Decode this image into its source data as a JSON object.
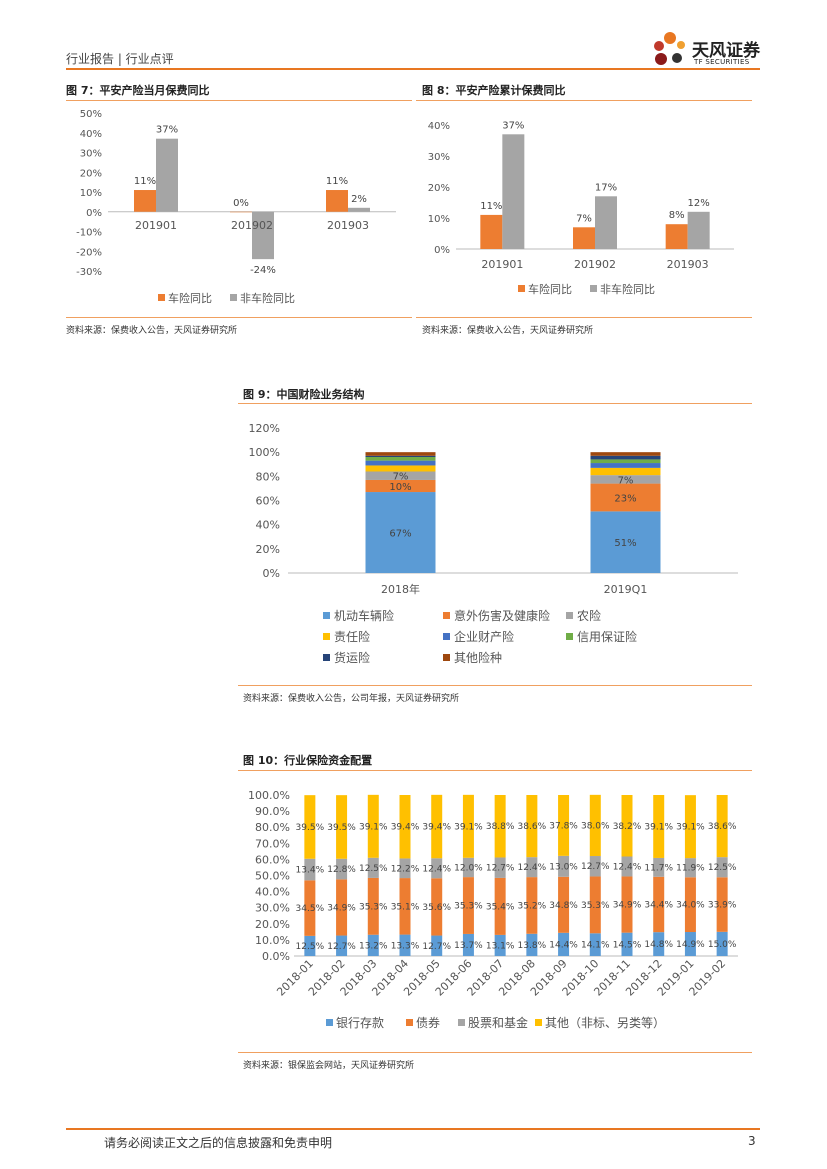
{
  "header": {
    "left": "行业报告 | 行业点评",
    "logo_cn": "天风证券",
    "logo_en": "TF SECURITIES"
  },
  "colors": {
    "orange": "#ed7d31",
    "gray": "#a5a5a5",
    "blue": "#5b9bd5",
    "yellow": "#ffc000",
    "darkblue": "#4472c4",
    "green": "#70ad47",
    "navy": "#264478",
    "brown": "#9e480e",
    "accent": "#e87722"
  },
  "fig7": {
    "title": "图 7：平安产险当月保费同比",
    "source": "资料来源：保费收入公告，天风证券研究所"
  },
  "fig8": {
    "title": "图 8：平安产险累计保费同比",
    "source": "资料来源：保费收入公告，天风证券研究所"
  },
  "fig9": {
    "title": "图 9：中国财险业务结构",
    "source": "资料来源：保费收入公告，公司年报，天风证券研究所"
  },
  "fig10": {
    "title": "图 10：行业保险资金配置",
    "source": "资料来源：银保监会网站，天风证券研究所"
  },
  "footer": {
    "disclaimer": "请务必阅读正文之后的信息披露和免责申明",
    "page": "3"
  },
  "chart_data": [
    {
      "type": "bar",
      "categories": [
        "201901",
        "201902",
        "201903"
      ],
      "series": [
        {
          "name": "车险同比",
          "values": [
            11,
            0,
            11
          ],
          "labels": [
            "11%",
            "0%",
            "11%"
          ]
        },
        {
          "name": "非车险同比",
          "values": [
            37,
            -24,
            2
          ],
          "labels": [
            "37%",
            "-24%",
            "2%"
          ]
        }
      ],
      "ylim": [
        -30,
        50
      ],
      "yticks": [
        "50%",
        "40%",
        "30%",
        "20%",
        "10%",
        "0%",
        "-10%",
        "-20%",
        "-30%"
      ],
      "legend": "bottom"
    },
    {
      "type": "bar",
      "categories": [
        "201901",
        "201902",
        "201903"
      ],
      "series": [
        {
          "name": "车险同比",
          "values": [
            11,
            7,
            8
          ],
          "labels": [
            "11%",
            "7%",
            "8%"
          ]
        },
        {
          "name": "非车险同比",
          "values": [
            37,
            17,
            12
          ],
          "labels": [
            "37%",
            "17%",
            "12%"
          ]
        }
      ],
      "ylim": [
        0,
        40
      ],
      "yticks": [
        "40%",
        "30%",
        "20%",
        "10%",
        "0%"
      ],
      "legend": "bottom"
    },
    {
      "type": "bar",
      "stacked": true,
      "categories": [
        "2018年",
        "2019Q1"
      ],
      "series": [
        {
          "name": "机动车辆险",
          "values": [
            67,
            51
          ],
          "labels": [
            "67%",
            "51%"
          ]
        },
        {
          "name": "意外伤害及健康险",
          "values": [
            10,
            23
          ],
          "labels": [
            "10%",
            "23%"
          ]
        },
        {
          "name": "农险",
          "values": [
            7,
            7
          ],
          "labels": [
            "7%",
            "7%"
          ]
        },
        {
          "name": "责任险",
          "values": [
            5,
            6
          ],
          "labels": [
            "",
            ""
          ]
        },
        {
          "name": "企业财产险",
          "values": [
            4,
            4
          ],
          "labels": [
            "",
            ""
          ]
        },
        {
          "name": "信用保证险",
          "values": [
            3,
            3
          ],
          "labels": [
            "",
            ""
          ]
        },
        {
          "name": "货运险",
          "values": [
            1,
            3
          ],
          "labels": [
            "",
            ""
          ]
        },
        {
          "name": "其他险种",
          "values": [
            3,
            3
          ],
          "labels": [
            "",
            ""
          ]
        }
      ],
      "ylim": [
        0,
        120
      ],
      "yticks": [
        "120%",
        "100%",
        "80%",
        "60%",
        "40%",
        "20%",
        "0%"
      ],
      "legend": "bottom"
    },
    {
      "type": "bar",
      "stacked": true,
      "categories": [
        "2018-01",
        "2018-02",
        "2018-03",
        "2018-04",
        "2018-05",
        "2018-06",
        "2018-07",
        "2018-08",
        "2018-09",
        "2018-10",
        "2018-11",
        "2018-12",
        "2019-01",
        "2019-02"
      ],
      "series": [
        {
          "name": "银行存款",
          "values": [
            12.5,
            12.7,
            13.2,
            13.3,
            12.7,
            13.7,
            13.1,
            13.8,
            14.4,
            14.1,
            14.5,
            14.8,
            14.9,
            15.0
          ],
          "labels": [
            "12.5%",
            "12.7%",
            "13.2%",
            "13.3%",
            "12.7%",
            "13.7%",
            "13.1%",
            "13.8%",
            "14.4%",
            "14.1%",
            "14.5%",
            "14.8%",
            "14.9%",
            "15.0%"
          ]
        },
        {
          "name": "债券",
          "values": [
            34.5,
            34.9,
            35.3,
            35.1,
            35.6,
            35.3,
            35.4,
            35.2,
            34.8,
            35.3,
            34.9,
            34.4,
            34.0,
            33.9
          ],
          "labels": [
            "34.5%",
            "34.9%",
            "35.3%",
            "35.1%",
            "35.6%",
            "35.3%",
            "35.4%",
            "35.2%",
            "34.8%",
            "35.3%",
            "34.9%",
            "34.4%",
            "34.0%",
            "33.9%"
          ]
        },
        {
          "name": "股票和基金",
          "values": [
            13.4,
            12.8,
            12.5,
            12.2,
            12.4,
            12.0,
            12.7,
            12.4,
            13.0,
            12.7,
            12.4,
            11.7,
            11.9,
            12.5
          ],
          "labels": [
            "13.4%",
            "12.8%",
            "12.5%",
            "12.2%",
            "12.4%",
            "12.0%",
            "12.7%",
            "12.4%",
            "13.0%",
            "12.7%",
            "12.4%",
            "11.7%",
            "11.9%",
            "12.5%"
          ]
        },
        {
          "name": "其他（非标、另类等）",
          "values": [
            39.5,
            39.5,
            39.1,
            39.4,
            39.4,
            39.1,
            38.8,
            38.6,
            37.8,
            38.0,
            38.2,
            39.1,
            39.1,
            38.6
          ],
          "labels": [
            "39.5%",
            "39.5%",
            "39.1%",
            "39.4%",
            "39.4%",
            "39.1%",
            "38.8%",
            "38.6%",
            "37.8%",
            "38.0%",
            "38.2%",
            "39.1%",
            "39.1%",
            "38.6%"
          ]
        }
      ],
      "ylim": [
        0,
        100
      ],
      "yticks": [
        "100.0%",
        "90.0%",
        "80.0%",
        "70.0%",
        "60.0%",
        "50.0%",
        "40.0%",
        "30.0%",
        "20.0%",
        "10.0%",
        "0.0%"
      ],
      "legend": "bottom"
    }
  ]
}
